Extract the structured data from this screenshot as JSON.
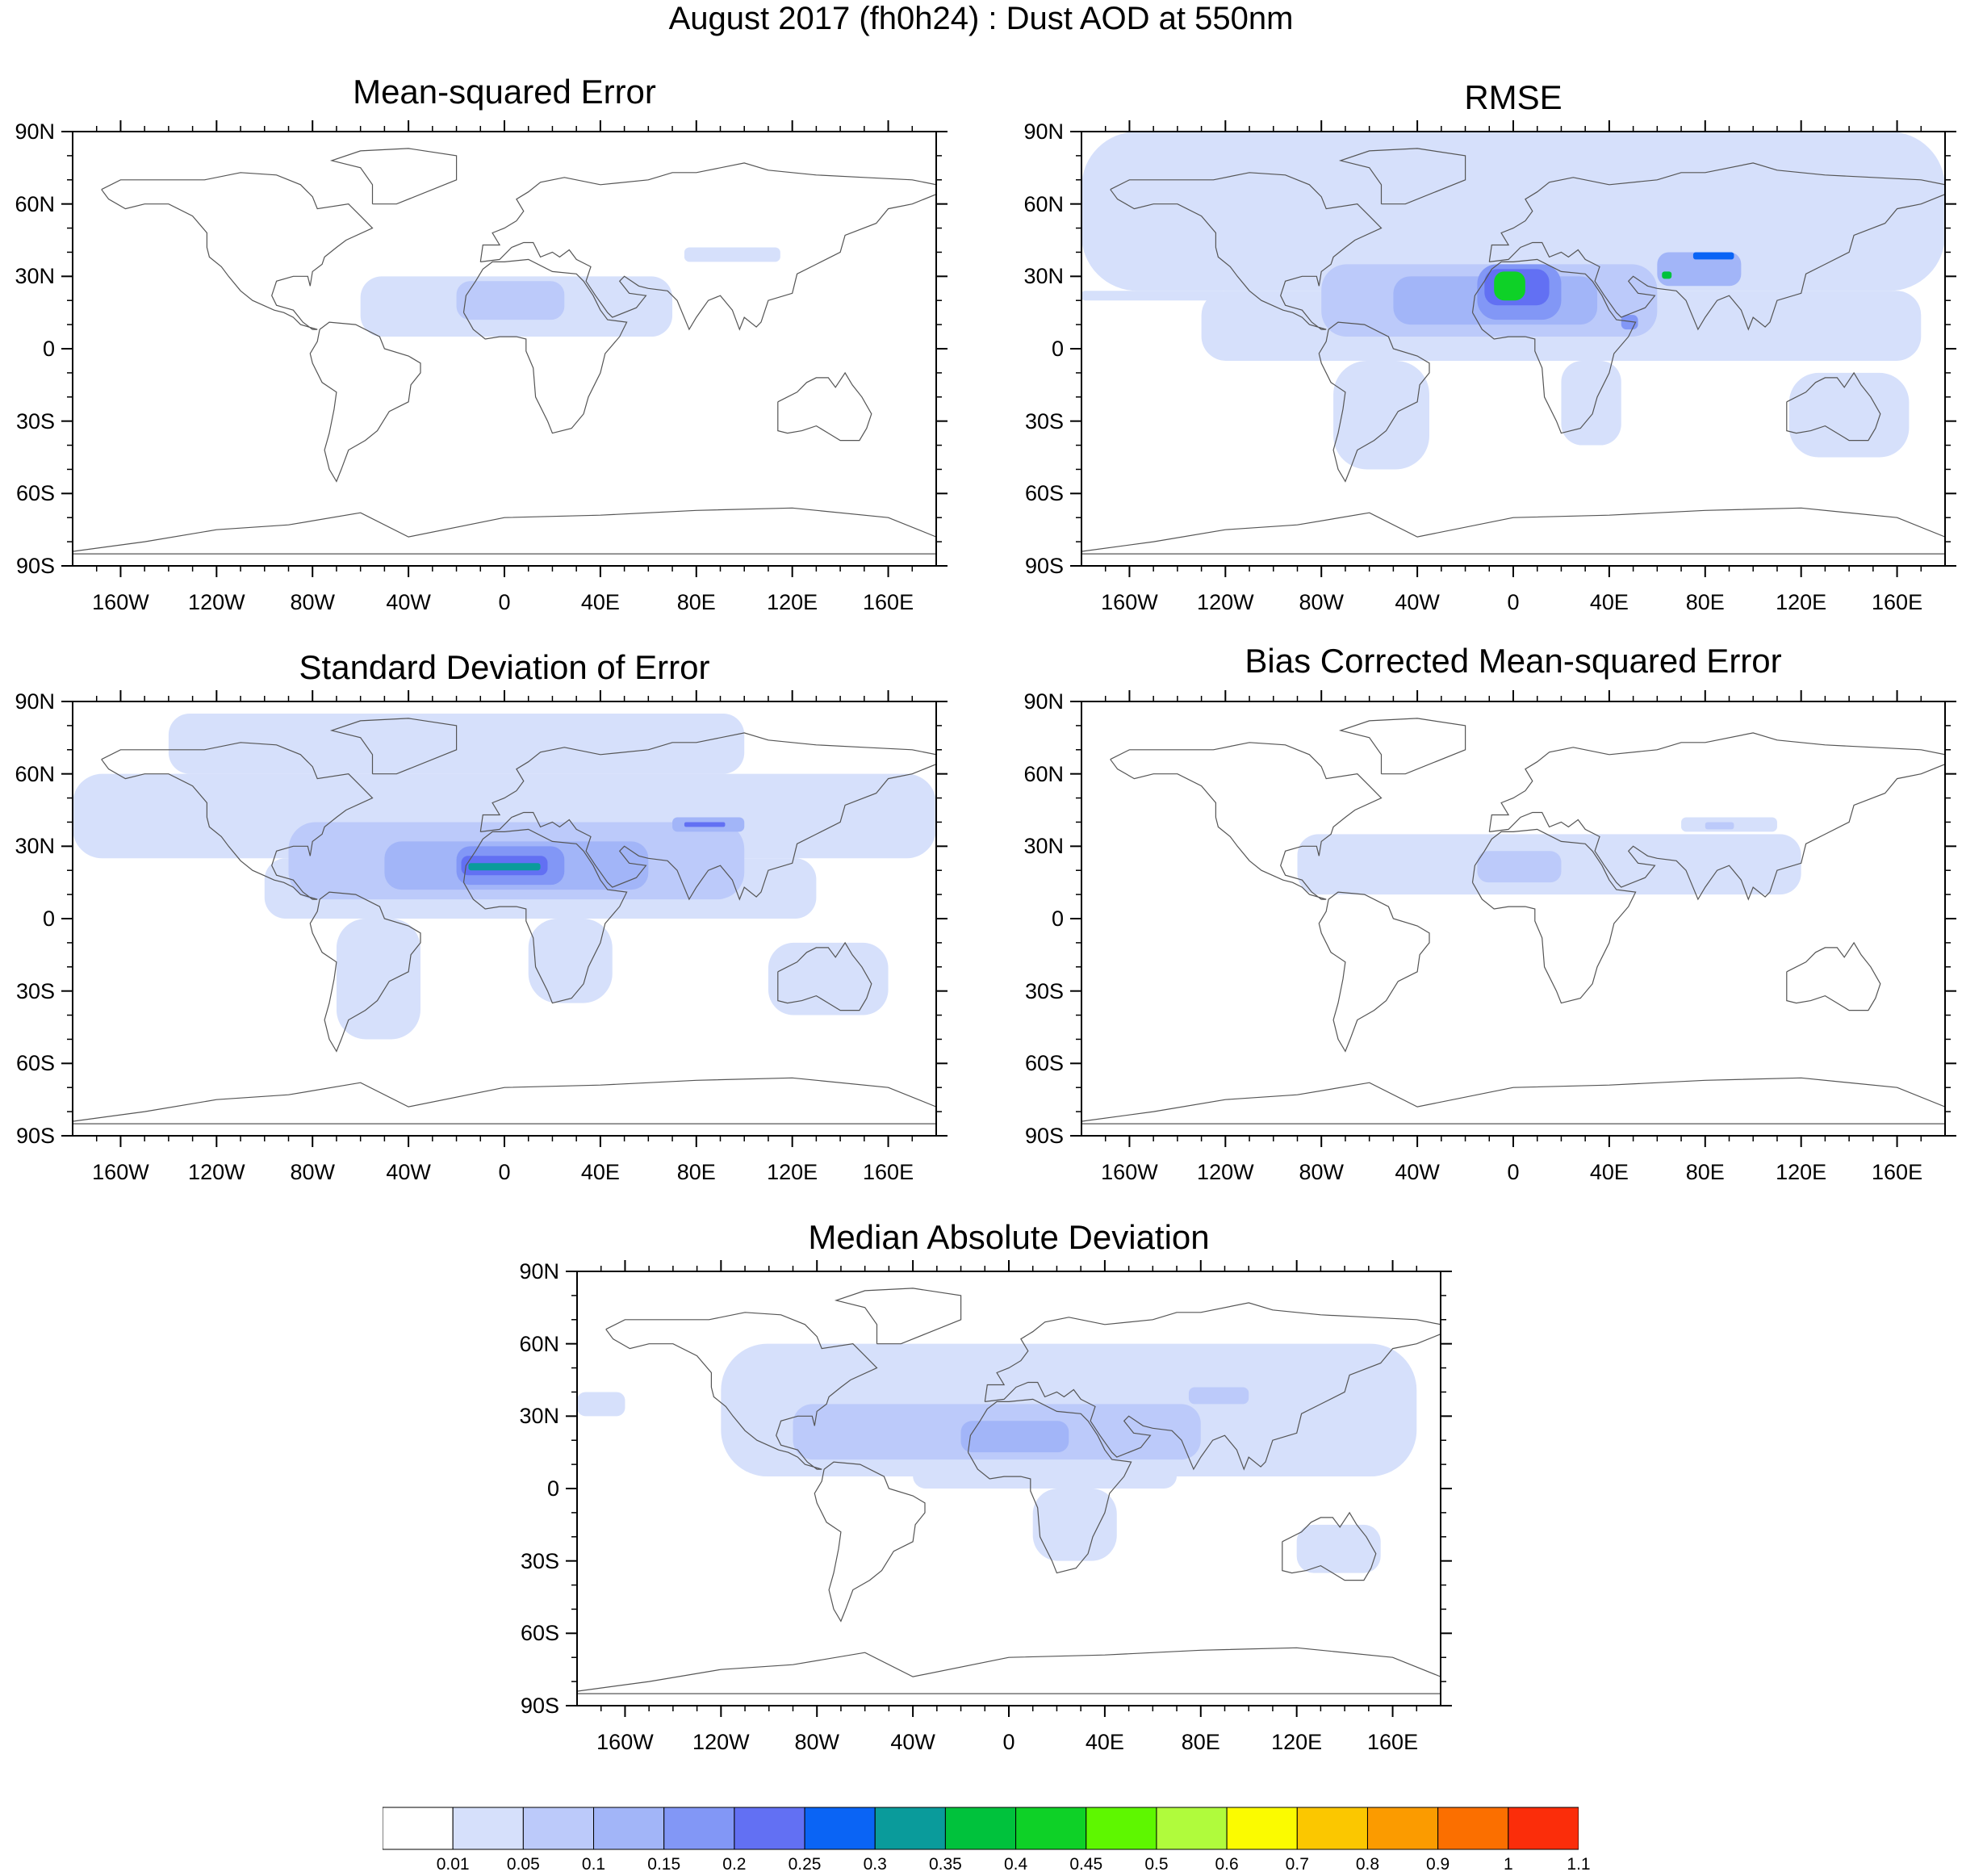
{
  "title": "August 2017 (fh0h24) : Dust AOD at 550nm",
  "axes": {
    "lat_labels": [
      "90N",
      "60N",
      "30N",
      "0",
      "30S",
      "60S",
      "90S"
    ],
    "lon_labels": [
      "160W",
      "120W",
      "80W",
      "40W",
      "0",
      "40E",
      "80E",
      "120E",
      "160E"
    ],
    "lat_values": [
      90,
      60,
      30,
      0,
      -30,
      -60,
      -90
    ],
    "lon_values": [
      -160,
      -120,
      -80,
      -40,
      0,
      40,
      80,
      120,
      160
    ]
  },
  "panels": [
    {
      "id": "mse",
      "title": "Mean-squared Error",
      "blobs": [
        {
          "lon": [
            -60,
            70
          ],
          "lat": [
            5,
            30
          ],
          "level": 1
        },
        {
          "lon": [
            -20,
            25
          ],
          "lat": [
            12,
            28
          ],
          "level": 2
        },
        {
          "lon": [
            75,
            115
          ],
          "lat": [
            36,
            42
          ],
          "level": 1
        }
      ]
    },
    {
      "id": "rmse",
      "title": "RMSE",
      "blobs": [
        {
          "lon": [
            -180,
            180
          ],
          "lat": [
            24,
            90
          ],
          "level": 1
        },
        {
          "lon": [
            -180,
            -120
          ],
          "lat": [
            20,
            24
          ],
          "level": 1
        },
        {
          "lon": [
            -130,
            170
          ],
          "lat": [
            -5,
            24
          ],
          "level": 1
        },
        {
          "lon": [
            -75,
            -35
          ],
          "lat": [
            -50,
            -5
          ],
          "level": 1
        },
        {
          "lon": [
            20,
            45
          ],
          "lat": [
            -40,
            -5
          ],
          "level": 1
        },
        {
          "lon": [
            115,
            165
          ],
          "lat": [
            -45,
            -10
          ],
          "level": 1
        },
        {
          "lon": [
            -80,
            60
          ],
          "lat": [
            5,
            35
          ],
          "level": 2
        },
        {
          "lon": [
            -50,
            35
          ],
          "lat": [
            10,
            30
          ],
          "level": 3
        },
        {
          "lon": [
            -15,
            20
          ],
          "lat": [
            12,
            35
          ],
          "level": 4
        },
        {
          "lon": [
            -12,
            15
          ],
          "lat": [
            18,
            33
          ],
          "level": 5
        },
        {
          "lon": [
            -8,
            5
          ],
          "lat": [
            20,
            32
          ],
          "level": 9
        },
        {
          "lon": [
            60,
            95
          ],
          "lat": [
            26,
            40
          ],
          "level": 3
        },
        {
          "lon": [
            62,
            66
          ],
          "lat": [
            29,
            32
          ],
          "level": 8
        },
        {
          "lon": [
            75,
            92
          ],
          "lat": [
            37,
            40
          ],
          "level": 6
        },
        {
          "lon": [
            45,
            52
          ],
          "lat": [
            8,
            14
          ],
          "level": 4
        }
      ]
    },
    {
      "id": "std",
      "title": "Standard Deviation of Error",
      "blobs": [
        {
          "lon": [
            -140,
            100
          ],
          "lat": [
            60,
            85
          ],
          "level": 1
        },
        {
          "lon": [
            -180,
            180
          ],
          "lat": [
            25,
            60
          ],
          "level": 1
        },
        {
          "lon": [
            -100,
            130
          ],
          "lat": [
            0,
            25
          ],
          "level": 1
        },
        {
          "lon": [
            -70,
            -35
          ],
          "lat": [
            -50,
            0
          ],
          "level": 1
        },
        {
          "lon": [
            10,
            45
          ],
          "lat": [
            -35,
            0
          ],
          "level": 1
        },
        {
          "lon": [
            110,
            160
          ],
          "lat": [
            -40,
            -10
          ],
          "level": 1
        },
        {
          "lon": [
            -90,
            100
          ],
          "lat": [
            8,
            40
          ],
          "level": 2
        },
        {
          "lon": [
            -50,
            60
          ],
          "lat": [
            12,
            32
          ],
          "level": 3
        },
        {
          "lon": [
            -20,
            25
          ],
          "lat": [
            14,
            30
          ],
          "level": 4
        },
        {
          "lon": [
            -18,
            18
          ],
          "lat": [
            18,
            26
          ],
          "level": 5
        },
        {
          "lon": [
            -15,
            15
          ],
          "lat": [
            20,
            23
          ],
          "level": 7
        },
        {
          "lon": [
            70,
            100
          ],
          "lat": [
            36,
            42
          ],
          "level": 3
        },
        {
          "lon": [
            75,
            92
          ],
          "lat": [
            38,
            40
          ],
          "level": 5
        }
      ]
    },
    {
      "id": "bcmse",
      "title": "Bias Corrected Mean-squared Error",
      "blobs": [
        {
          "lon": [
            -90,
            120
          ],
          "lat": [
            10,
            35
          ],
          "level": 1
        },
        {
          "lon": [
            70,
            110
          ],
          "lat": [
            36,
            42
          ],
          "level": 1
        },
        {
          "lon": [
            -15,
            20
          ],
          "lat": [
            15,
            28
          ],
          "level": 2
        },
        {
          "lon": [
            80,
            92
          ],
          "lat": [
            37,
            40
          ],
          "level": 2
        }
      ]
    },
    {
      "id": "mad",
      "title": "Median Absolute Deviation",
      "blobs": [
        {
          "lon": [
            -180,
            -160
          ],
          "lat": [
            30,
            40
          ],
          "level": 1
        },
        {
          "lon": [
            -120,
            170
          ],
          "lat": [
            5,
            60
          ],
          "level": 1
        },
        {
          "lon": [
            -40,
            70
          ],
          "lat": [
            0,
            15
          ],
          "level": 1
        },
        {
          "lon": [
            10,
            45
          ],
          "lat": [
            -30,
            0
          ],
          "level": 1
        },
        {
          "lon": [
            120,
            155
          ],
          "lat": [
            -35,
            -15
          ],
          "level": 1
        },
        {
          "lon": [
            -90,
            80
          ],
          "lat": [
            12,
            35
          ],
          "level": 2
        },
        {
          "lon": [
            -20,
            25
          ],
          "lat": [
            15,
            28
          ],
          "level": 3
        },
        {
          "lon": [
            75,
            100
          ],
          "lat": [
            35,
            42
          ],
          "level": 2
        }
      ]
    }
  ],
  "colorbar": {
    "colors": [
      "#ffffff",
      "#d6e0fb",
      "#bccafa",
      "#a2b5f8",
      "#8297f6",
      "#6270f3",
      "#0a64f5",
      "#0a9b9b",
      "#00c23c",
      "#0ed127",
      "#5ef700",
      "#b0fb3c",
      "#fbfb00",
      "#fbc700",
      "#fb9b00",
      "#fb6f00",
      "#fb2d0a"
    ],
    "labels": [
      "0.01",
      "0.05",
      "0.1",
      "0.15",
      "0.2",
      "0.25",
      "0.3",
      "0.35",
      "0.4",
      "0.45",
      "0.5",
      "0.6",
      "0.7",
      "0.8",
      "0.9",
      "1",
      "1.1"
    ]
  }
}
